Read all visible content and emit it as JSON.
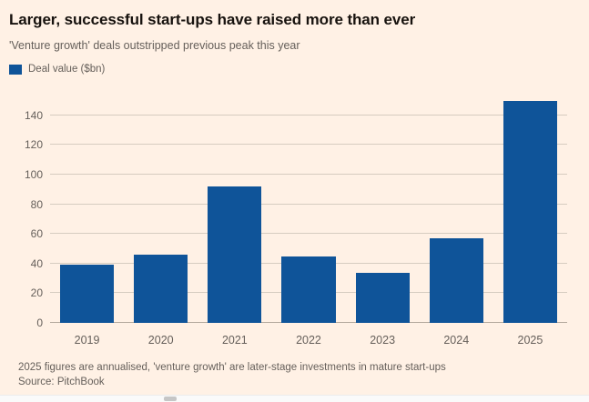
{
  "header": {
    "title": "Larger, successful start-ups have raised more than ever",
    "subtitle": "'Venture growth' deals outstripped previous peak this year"
  },
  "legend": {
    "label": "Deal value ($bn)",
    "swatch_color": "#0f5499"
  },
  "chart_data": {
    "type": "bar",
    "title": "Larger, successful start-ups have raised more than ever",
    "subtitle": "'Venture growth' deals outstripped previous peak this year",
    "legend": [
      "Deal value ($bn)"
    ],
    "categories": [
      "2019",
      "2020",
      "2021",
      "2022",
      "2023",
      "2024",
      "2025"
    ],
    "values": [
      39,
      46,
      92,
      45,
      34,
      57,
      150
    ],
    "xlabel": "",
    "ylabel": "",
    "yticks": [
      0,
      20,
      40,
      60,
      80,
      100,
      120,
      140
    ],
    "ylim": [
      0,
      154
    ],
    "grid": true,
    "bar_color": "#0f5499",
    "background_color": "#fff1e5"
  },
  "footer": {
    "note": "2025 figures are annualised, 'venture growth' are later-stage investments in mature start-ups",
    "source": "Source: PitchBook"
  }
}
